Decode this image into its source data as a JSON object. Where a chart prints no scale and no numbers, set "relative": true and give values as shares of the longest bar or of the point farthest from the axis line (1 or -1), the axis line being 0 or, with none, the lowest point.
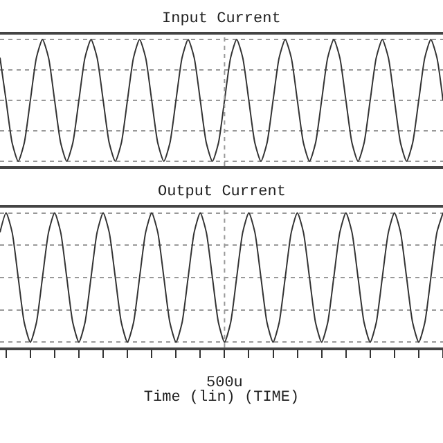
{
  "chart_data": [
    {
      "type": "line",
      "title": "Input Current",
      "relative": true,
      "grid": true,
      "tick_labels": false,
      "color": "#333333",
      "categories": [
        null,
        null,
        null,
        null,
        null,
        null,
        null,
        null,
        null,
        null,
        null,
        null,
        null,
        null,
        null,
        null,
        null,
        null,
        null,
        null,
        null,
        null,
        null,
        null,
        null,
        null,
        null,
        null,
        null,
        null,
        null,
        null,
        null,
        null,
        null,
        null,
        null,
        null,
        null,
        null,
        null,
        null,
        null,
        null,
        null,
        null,
        null,
        null,
        null,
        null,
        null,
        null,
        null,
        null,
        null,
        null,
        null,
        null,
        null,
        null,
        null,
        null,
        null,
        null,
        null,
        null,
        null,
        null,
        null,
        null,
        null,
        null,
        null,
        null
      ],
      "values": [
        0.85,
        0.5,
        0.15,
        0,
        0.15,
        0.5,
        0.85,
        1,
        0.85,
        0.5,
        0.15,
        0,
        0.15,
        0.5,
        0.85,
        1,
        0.85,
        0.5,
        0.15,
        0,
        0.15,
        0.5,
        0.85,
        1,
        0.85,
        0.5,
        0.15,
        0,
        0.15,
        0.5,
        0.85,
        1,
        0.85,
        0.5,
        0.15,
        0,
        0.15,
        0.5,
        0.85,
        1,
        0.85,
        0.5,
        0.15,
        0,
        0.15,
        0.5,
        0.85,
        1,
        0.85,
        0.5,
        0.15,
        0,
        0.15,
        0.5,
        0.85,
        1,
        0.85,
        0.5,
        0.15,
        0,
        0.15,
        0.5,
        0.85,
        1,
        0.85,
        0.5,
        0.15,
        0,
        0.15,
        0.5,
        0.85,
        1,
        0.85,
        0.5
      ]
    },
    {
      "type": "line",
      "title": "Output Current",
      "xlabel": "Time (lin) (TIME)",
      "annotations": [
        "500u"
      ],
      "relative": true,
      "grid": true,
      "tick_labels": false,
      "color": "#333333",
      "categories": [
        null,
        null,
        null,
        null,
        null,
        null,
        null,
        null,
        null,
        null,
        null,
        null,
        null,
        null,
        null,
        null,
        null,
        null,
        null,
        null,
        null,
        null,
        null,
        null,
        null,
        null,
        null,
        null,
        null,
        null,
        null,
        null,
        null,
        null,
        null,
        null,
        null,
        null,
        null,
        null,
        null,
        null,
        null,
        null,
        null,
        null,
        null,
        null,
        null,
        null,
        null,
        null,
        null,
        null,
        null,
        null,
        null,
        null,
        null,
        null,
        null,
        null,
        null,
        null,
        null,
        null,
        null,
        null,
        null,
        null,
        null,
        null,
        null,
        null
      ],
      "values": [
        0.85,
        1,
        0.85,
        0.5,
        0.15,
        0,
        0.15,
        0.5,
        0.85,
        1,
        0.85,
        0.5,
        0.15,
        0,
        0.15,
        0.5,
        0.85,
        1,
        0.85,
        0.5,
        0.15,
        0,
        0.15,
        0.5,
        0.85,
        1,
        0.85,
        0.5,
        0.15,
        0,
        0.15,
        0.5,
        0.85,
        1,
        0.85,
        0.5,
        0.15,
        0,
        0.15,
        0.5,
        0.85,
        1,
        0.85,
        0.5,
        0.15,
        0,
        0.15,
        0.5,
        0.85,
        1,
        0.85,
        0.5,
        0.15,
        0,
        0.15,
        0.5,
        0.85,
        1,
        0.85,
        0.5,
        0.15,
        0,
        0.15,
        0.5,
        0.85,
        1,
        0.85,
        0.5,
        0.15,
        0,
        0.15,
        0.5,
        0.85,
        1
      ]
    }
  ]
}
